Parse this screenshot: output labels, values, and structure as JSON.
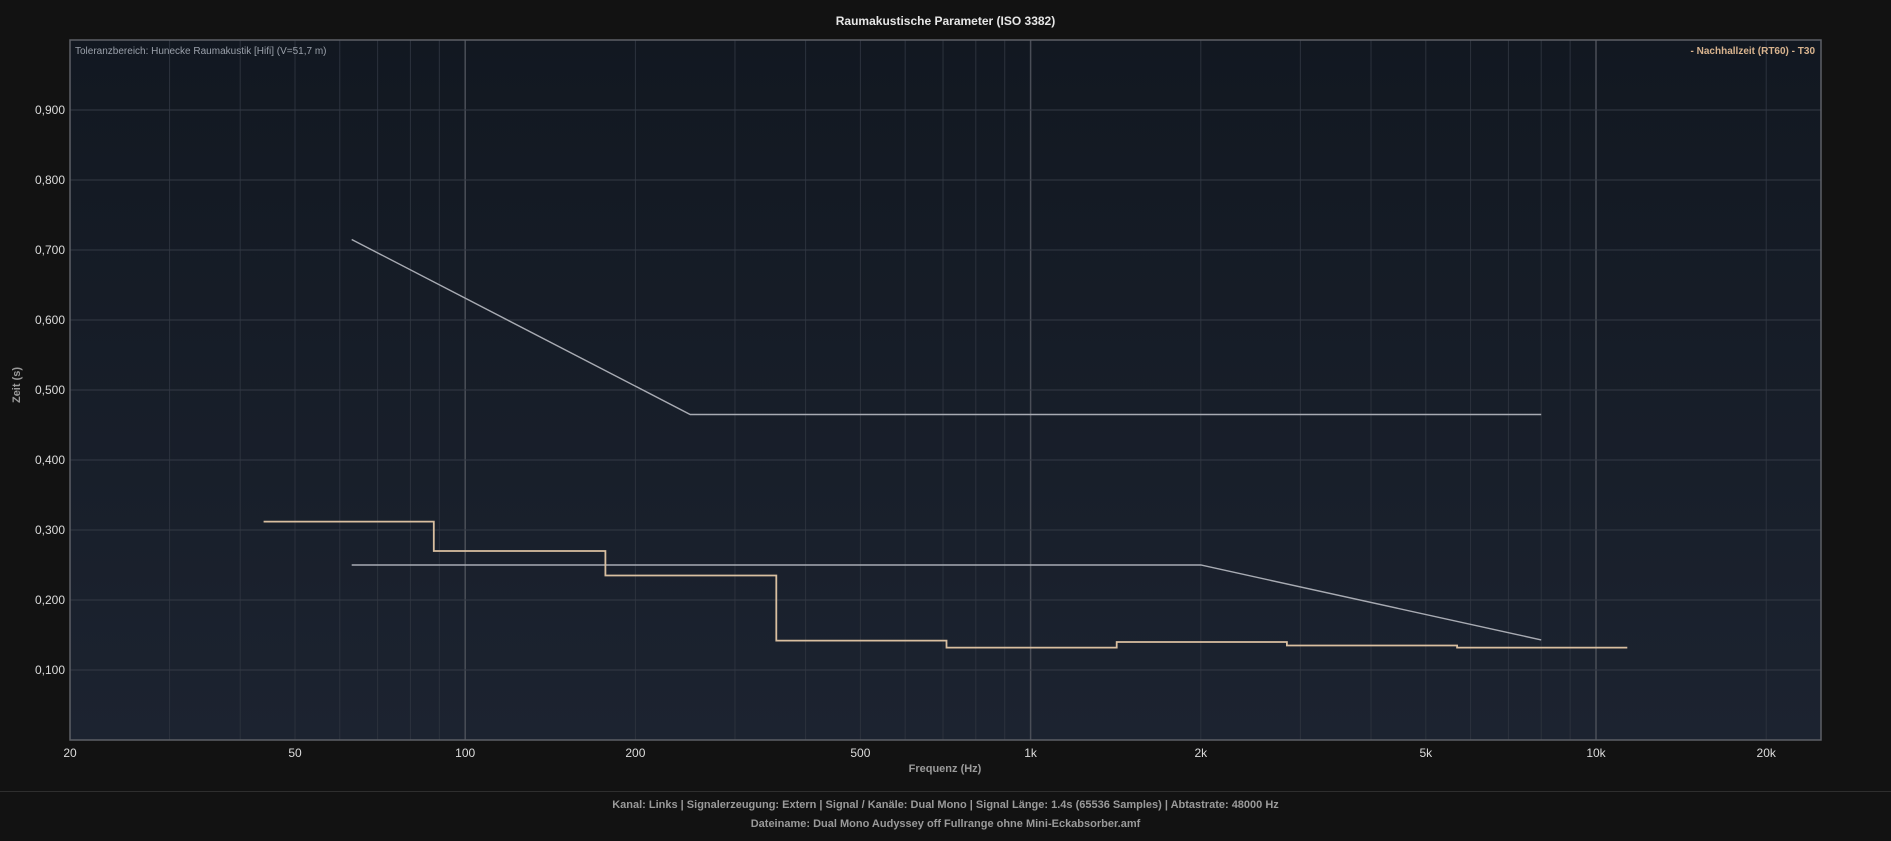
{
  "chart_data": {
    "type": "line",
    "title": "Raumakustische Parameter (ISO 3382)",
    "xlabel": "Frequenz (Hz)",
    "ylabel": "Zeit (s)",
    "x_scale": "log",
    "xlim": [
      20,
      25000
    ],
    "ylim": [
      0,
      1.0
    ],
    "grid": true,
    "x_ticks": [
      {
        "value": 20,
        "label": "20"
      },
      {
        "value": 50,
        "label": "50"
      },
      {
        "value": 100,
        "label": "100"
      },
      {
        "value": 200,
        "label": "200"
      },
      {
        "value": 500,
        "label": "500"
      },
      {
        "value": 1000,
        "label": "1k"
      },
      {
        "value": 2000,
        "label": "2k"
      },
      {
        "value": 5000,
        "label": "5k"
      },
      {
        "value": 10000,
        "label": "10k"
      },
      {
        "value": 20000,
        "label": "20k"
      }
    ],
    "y_ticks": [
      {
        "value": 0.1,
        "label": "0,100"
      },
      {
        "value": 0.2,
        "label": "0,200"
      },
      {
        "value": 0.3,
        "label": "0,300"
      },
      {
        "value": 0.4,
        "label": "0,400"
      },
      {
        "value": 0.5,
        "label": "0,500"
      },
      {
        "value": 0.6,
        "label": "0,600"
      },
      {
        "value": 0.7,
        "label": "0,700"
      },
      {
        "value": 0.8,
        "label": "0,800"
      },
      {
        "value": 0.9,
        "label": "0,900"
      }
    ],
    "tolerance_label": "Toleranzbereich: Hunecke Raumakustik [Hifi] (V=51,7 m)",
    "legend": {
      "position": "top-right",
      "label": "- Nachhallzeit (RT60) - T30"
    },
    "tolerance_upper": {
      "color": "#a8abb3",
      "x": [
        63,
        250,
        8000
      ],
      "y": [
        0.715,
        0.465,
        0.465
      ]
    },
    "tolerance_lower": {
      "color": "#a8abb3",
      "x": [
        63,
        2000,
        8000
      ],
      "y": [
        0.25,
        0.25,
        0.143
      ]
    },
    "series": [
      {
        "name": "- Nachhallzeit (RT60) - T30",
        "color": "#d9bfa0",
        "step": true,
        "bands": [
          {
            "from": 44,
            "to": 88,
            "value": 0.312
          },
          {
            "from": 88,
            "to": 177,
            "value": 0.27
          },
          {
            "from": 177,
            "to": 355,
            "value": 0.235
          },
          {
            "from": 355,
            "to": 710,
            "value": 0.142
          },
          {
            "from": 710,
            "to": 1420,
            "value": 0.132
          },
          {
            "from": 1420,
            "to": 2840,
            "value": 0.14
          },
          {
            "from": 2840,
            "to": 5680,
            "value": 0.135
          },
          {
            "from": 5680,
            "to": 11360,
            "value": 0.132
          }
        ]
      }
    ]
  },
  "footer": {
    "line1": "Kanal: Links  |  Signalerzeugung: Extern   |  Signal / Kanäle: Dual Mono  |  Signal Länge: 1.4s (65536 Samples)  |  Abtastrate: 48000 Hz",
    "line2": "Dateiname: Dual Mono Audyssey off Fullrange ohne Mini-Eckabsorber.amf"
  }
}
